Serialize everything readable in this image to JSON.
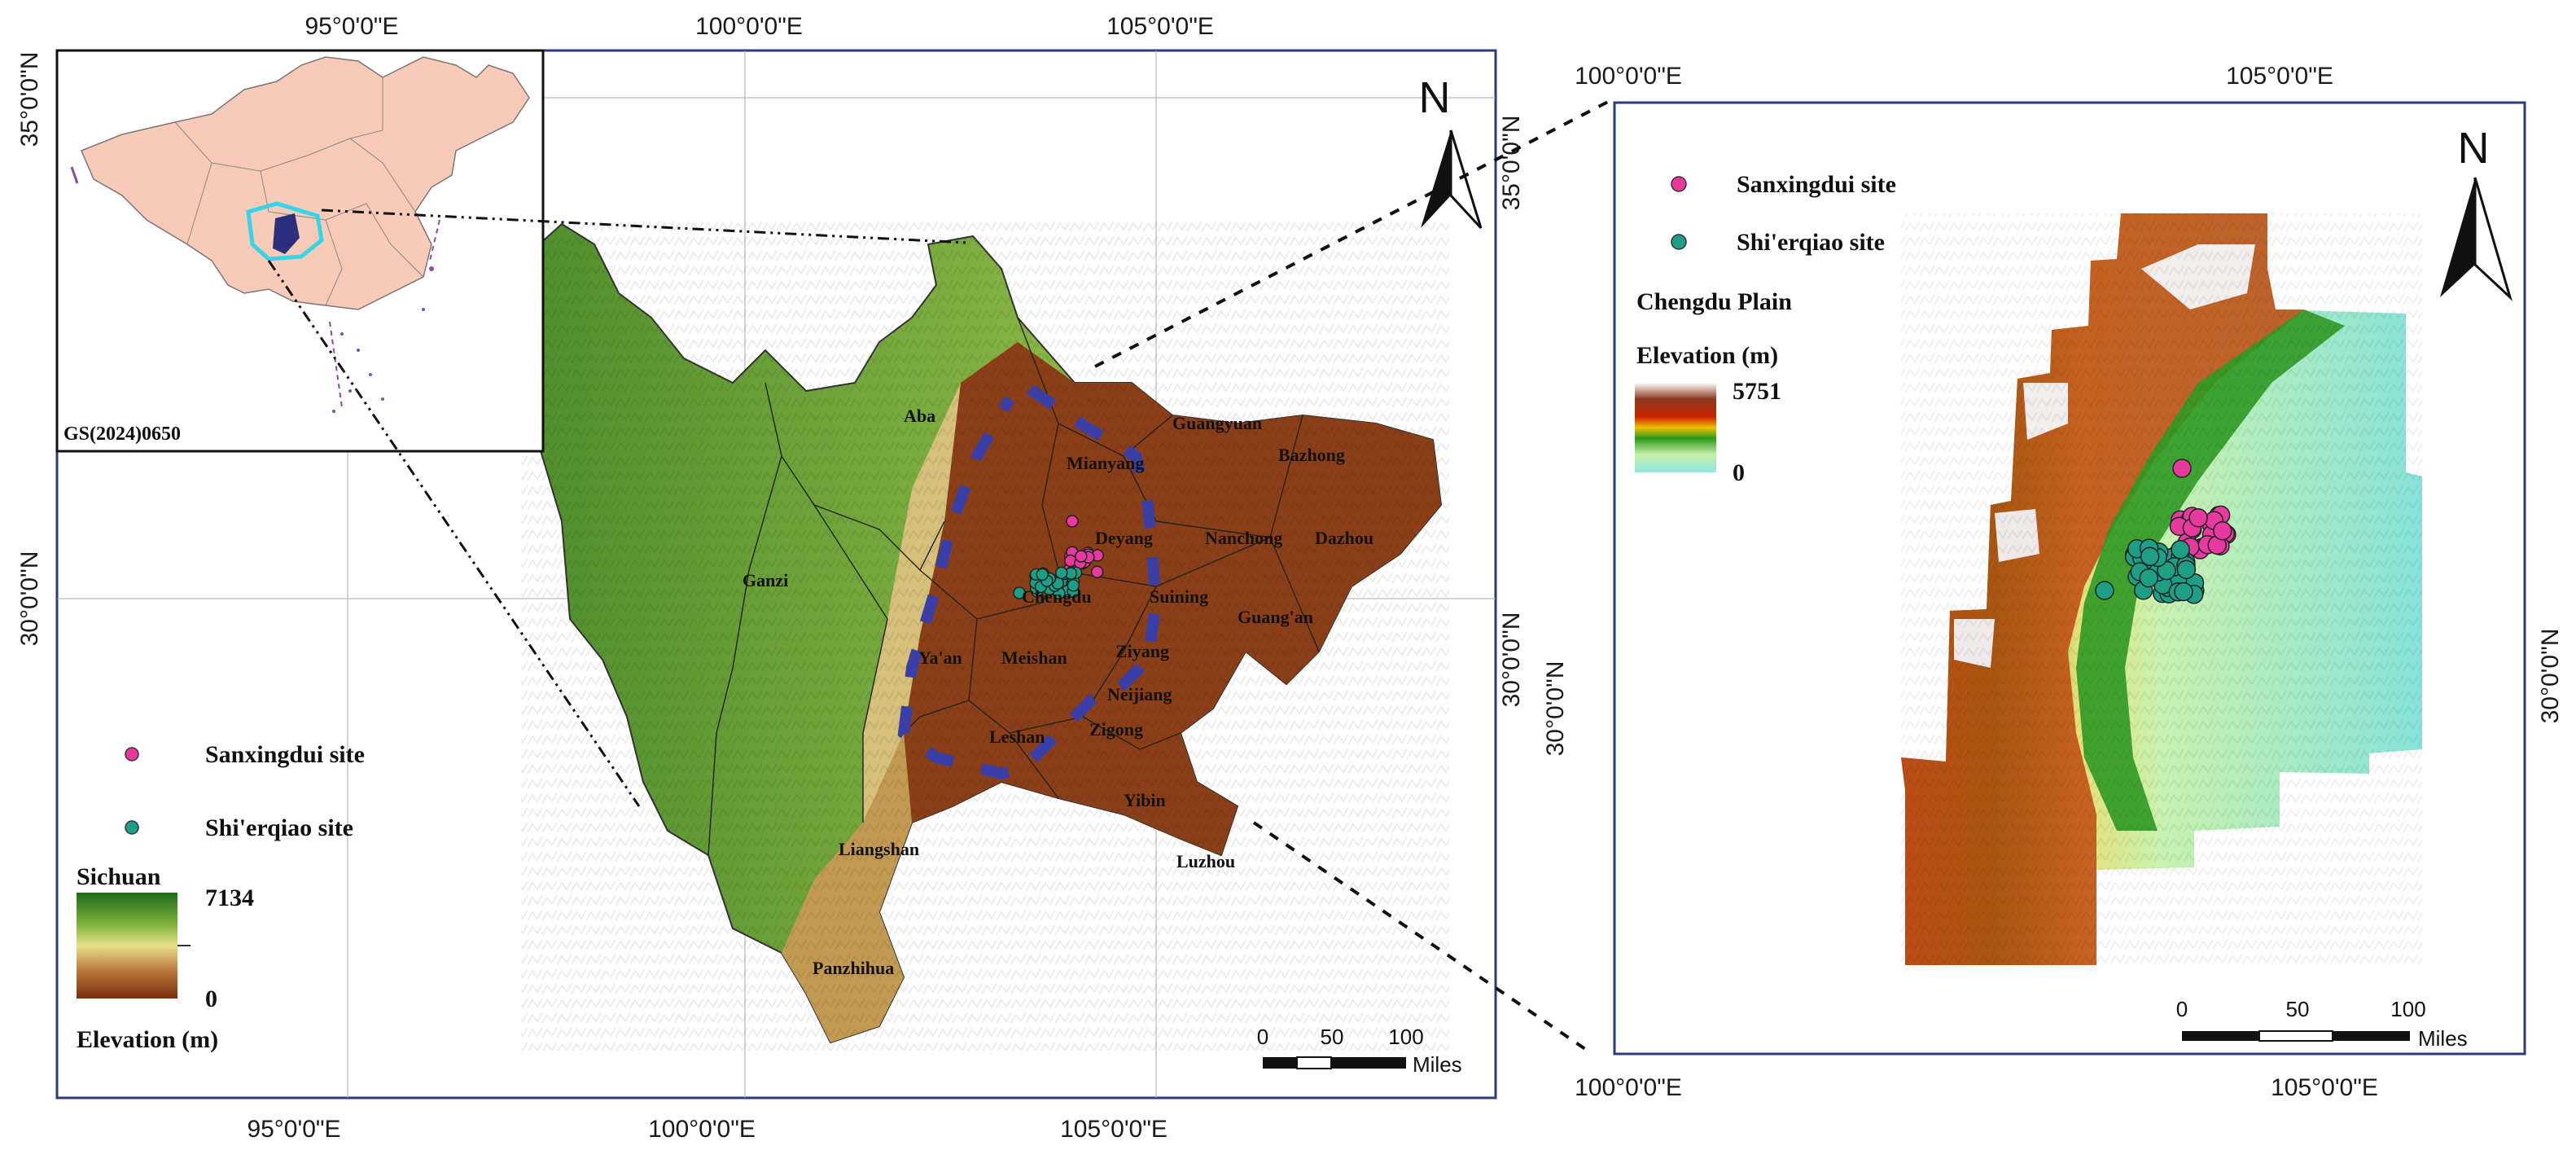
{
  "left_map": {
    "top_lon_labels": [
      "95°0'0\"E",
      "100°0'0\"E",
      "105°0'0\"E"
    ],
    "bottom_lon_labels": [
      "95°0'0\"E",
      "100°0'0\"E",
      "105°0'0\"E"
    ],
    "left_lat_labels": [
      "35°0'0\"N",
      "30°0'0\"N"
    ],
    "right_lat_labels": [
      "35°0'0\"N",
      "30°0'0\"N"
    ],
    "north_label": "N",
    "inset_code": "GS(2024)0650",
    "cities": [
      "Aba",
      "Guangyuan",
      "Bazhong",
      "Mianyang",
      "Deyang",
      "Nanchong",
      "Dazhou",
      "Ganzi",
      "Chengdu",
      "Suining",
      "Guang'an",
      "Ya'an",
      "Meishan",
      "Ziyang",
      "Neijiang",
      "Leshan",
      "Zigong",
      "Yibin",
      "Liangshan",
      "Luzhou",
      "Panzhihua"
    ],
    "legend": {
      "sanxingdui": "Sanxingdui site",
      "shierqiao": "Shi'erqiao site",
      "region": "Sichuan",
      "max": "7134",
      "min": "0",
      "elevation": "Elevation (m)"
    },
    "scalebar": {
      "ticks": [
        "0",
        "50",
        "100"
      ],
      "unit": "Miles"
    }
  },
  "right_map": {
    "top_lon_labels": [
      "100°0'0\"E",
      "105°0'0\"E"
    ],
    "bottom_lon_labels": [
      "100°0'0\"E",
      "105°0'0\"E"
    ],
    "left_lat_labels": [
      "30°0'0\"N"
    ],
    "right_lat_labels": [
      "30°0'0\"N"
    ],
    "north_label": "N",
    "legend": {
      "sanxingdui": "Sanxingdui site",
      "shierqiao": "Shi'erqiao site",
      "region": "Chengdu Plain",
      "elevation": "Elevation (m)",
      "max": "5751",
      "min": "0"
    },
    "scalebar": {
      "ticks": [
        "0",
        "50",
        "100"
      ],
      "unit": "Miles"
    }
  },
  "colors": {
    "sanxingdui": "#e83a9e",
    "shierqiao": "#1f9e86",
    "frame": "#2e3a7a",
    "china_fill": "#f8cbb8",
    "sichuan_inset": "#2b2f7e",
    "sichuan_outline": "#33d6e8",
    "plain_line": "#3a3fa8"
  }
}
